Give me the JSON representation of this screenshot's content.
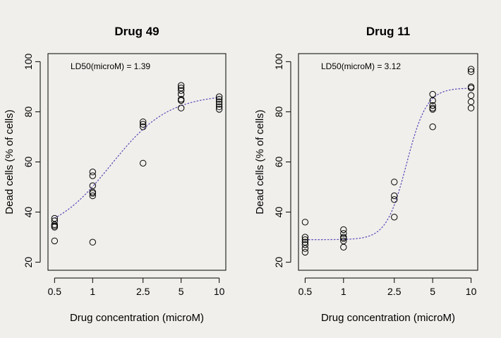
{
  "background_color": "#f0efeb",
  "point_color": "#000000",
  "curve_color": "#5a48b8",
  "chart_data": [
    {
      "type": "scatter",
      "title": "Drug 49",
      "xlabel": "Drug concentration (microM)",
      "ylabel": "Dead cells (% of cells)",
      "x_scale": "log",
      "x_ticks": [
        0.5,
        1,
        2.5,
        5,
        10
      ],
      "x_tick_labels": [
        "0.5",
        "1",
        "2.5",
        "5",
        "10"
      ],
      "xlim": [
        0.5,
        10
      ],
      "y_ticks": [
        20,
        40,
        60,
        80,
        100
      ],
      "y_tick_labels": [
        "20",
        "40",
        "60",
        "80",
        "100"
      ],
      "ylim": [
        20,
        100
      ],
      "grid": false,
      "annotation": "LD50(microM) = 1.39",
      "points": [
        {
          "x": 0.5,
          "y": 37.5
        },
        {
          "x": 0.5,
          "y": 36.5
        },
        {
          "x": 0.5,
          "y": 35
        },
        {
          "x": 0.5,
          "y": 34.5
        },
        {
          "x": 0.5,
          "y": 34
        },
        {
          "x": 0.5,
          "y": 28.5
        },
        {
          "x": 1,
          "y": 56
        },
        {
          "x": 1,
          "y": 54.5
        },
        {
          "x": 1,
          "y": 50.5
        },
        {
          "x": 1,
          "y": 48
        },
        {
          "x": 1,
          "y": 47.5
        },
        {
          "x": 1,
          "y": 46.5
        },
        {
          "x": 1,
          "y": 28
        },
        {
          "x": 2.5,
          "y": 76
        },
        {
          "x": 2.5,
          "y": 75
        },
        {
          "x": 2.5,
          "y": 74
        },
        {
          "x": 2.5,
          "y": 59.5
        },
        {
          "x": 5,
          "y": 90.5
        },
        {
          "x": 5,
          "y": 89.5
        },
        {
          "x": 5,
          "y": 88.5
        },
        {
          "x": 5,
          "y": 87
        },
        {
          "x": 5,
          "y": 85
        },
        {
          "x": 5,
          "y": 84.5
        },
        {
          "x": 5,
          "y": 81.5
        },
        {
          "x": 10,
          "y": 86
        },
        {
          "x": 10,
          "y": 85
        },
        {
          "x": 10,
          "y": 84
        },
        {
          "x": 10,
          "y": 83
        },
        {
          "x": 10,
          "y": 82
        },
        {
          "x": 10,
          "y": 81
        }
      ],
      "fit_curve": {
        "type": "logistic",
        "ld50": 1.39,
        "bottom": 30.5,
        "top": 87.0,
        "slope": 1.9
      }
    },
    {
      "type": "scatter",
      "title": "Drug 11",
      "xlabel": "Drug concentration (microM)",
      "ylabel": "Dead cells (% of cells)",
      "x_scale": "log",
      "x_ticks": [
        0.5,
        1,
        2.5,
        5,
        10
      ],
      "x_tick_labels": [
        "0.5",
        "1",
        "2.5",
        "5",
        "10"
      ],
      "xlim": [
        0.5,
        10
      ],
      "y_ticks": [
        20,
        40,
        60,
        80,
        100
      ],
      "y_tick_labels": [
        "20",
        "40",
        "60",
        "80",
        "100"
      ],
      "ylim": [
        20,
        100
      ],
      "grid": false,
      "annotation": "LD50(microM) = 3.12",
      "points": [
        {
          "x": 0.5,
          "y": 36
        },
        {
          "x": 0.5,
          "y": 30
        },
        {
          "x": 0.5,
          "y": 29
        },
        {
          "x": 0.5,
          "y": 28
        },
        {
          "x": 0.5,
          "y": 27
        },
        {
          "x": 0.5,
          "y": 25.5
        },
        {
          "x": 0.5,
          "y": 24
        },
        {
          "x": 1,
          "y": 33
        },
        {
          "x": 1,
          "y": 31.5
        },
        {
          "x": 1,
          "y": 30
        },
        {
          "x": 1,
          "y": 29.5
        },
        {
          "x": 1,
          "y": 28.5
        },
        {
          "x": 1,
          "y": 26
        },
        {
          "x": 2.5,
          "y": 52
        },
        {
          "x": 2.5,
          "y": 46.5
        },
        {
          "x": 2.5,
          "y": 45
        },
        {
          "x": 2.5,
          "y": 38
        },
        {
          "x": 5,
          "y": 87
        },
        {
          "x": 5,
          "y": 84.5
        },
        {
          "x": 5,
          "y": 82.5
        },
        {
          "x": 5,
          "y": 81.5
        },
        {
          "x": 5,
          "y": 81
        },
        {
          "x": 5,
          "y": 74
        },
        {
          "x": 10,
          "y": 97
        },
        {
          "x": 10,
          "y": 96
        },
        {
          "x": 10,
          "y": 90
        },
        {
          "x": 10,
          "y": 89.5
        },
        {
          "x": 10,
          "y": 86.5
        },
        {
          "x": 10,
          "y": 84
        },
        {
          "x": 10,
          "y": 81.5
        }
      ],
      "fit_curve": {
        "type": "logistic",
        "ld50": 3.12,
        "bottom": 29.0,
        "top": 89.5,
        "slope": 5.5
      }
    }
  ]
}
